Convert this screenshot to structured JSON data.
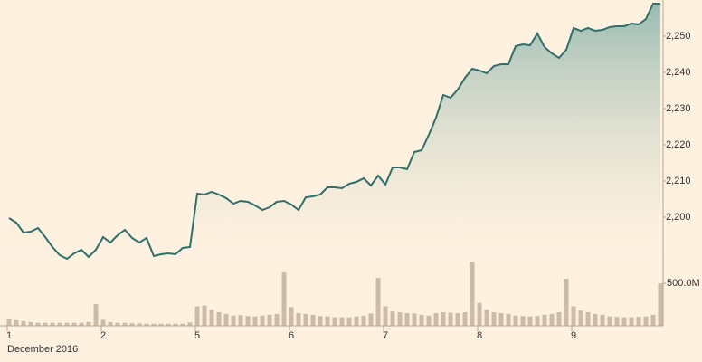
{
  "chart_data": {
    "type": "line",
    "x_label": "December 2016",
    "categories": [
      "1",
      null,
      null,
      null,
      null,
      null,
      null,
      null,
      null,
      null,
      null,
      null,
      null,
      "2",
      null,
      null,
      null,
      null,
      null,
      null,
      null,
      null,
      null,
      null,
      null,
      null,
      "5",
      null,
      null,
      null,
      null,
      null,
      null,
      null,
      null,
      null,
      null,
      null,
      null,
      "6",
      null,
      null,
      null,
      null,
      null,
      null,
      null,
      null,
      null,
      null,
      null,
      null,
      "7",
      null,
      null,
      null,
      null,
      null,
      null,
      null,
      null,
      null,
      null,
      null,
      null,
      "8",
      null,
      null,
      null,
      null,
      null,
      null,
      null,
      null,
      null,
      null,
      null,
      null,
      "9",
      null,
      null,
      null,
      null,
      null,
      null,
      null,
      null,
      null,
      null,
      null,
      null
    ],
    "series": [
      {
        "name": "Price",
        "color": "#2e6e6b",
        "axis": "y",
        "values": [
          2199.75,
          2198.5,
          2195.75,
          2196,
          2197,
          2194.5,
          2191.75,
          2189.5,
          2188.5,
          2190,
          2191,
          2189,
          2191,
          2194.5,
          2193,
          2195,
          2196.5,
          2194.25,
          2193,
          2194.25,
          2189.25,
          2189.75,
          2190,
          2189.75,
          2191.5,
          2191.75,
          2206.5,
          2206.25,
          2207,
          2206.25,
          2205.25,
          2203.75,
          2204.5,
          2204.25,
          2203.25,
          2202,
          2202.75,
          2204.25,
          2204.5,
          2203.5,
          2202,
          2205.5,
          2205.75,
          2206.25,
          2208.25,
          2208.25,
          2208,
          2209.25,
          2209.75,
          2210.75,
          2208.75,
          2211.5,
          2209,
          2213.75,
          2213.75,
          2213.25,
          2218,
          2218.5,
          2222.75,
          2227.5,
          2233.75,
          2233,
          2235.25,
          2238.5,
          2241,
          2240.5,
          2239.75,
          2241.75,
          2242.25,
          2242.25,
          2247.25,
          2247.75,
          2247.5,
          2250.75,
          2247,
          2245.25,
          2244,
          2246.25,
          2252.25,
          2251.5,
          2252.25,
          2251.5,
          2251.75,
          2252.5,
          2252.75,
          2252.75,
          2253.5,
          2253.25,
          2254.75,
          2259,
          2259
        ]
      },
      {
        "name": "Volume",
        "color": "#cbbba8",
        "axis": "y2",
        "values": [
          85000000,
          65000000,
          55000000,
          45000000,
          35000000,
          35000000,
          35000000,
          35000000,
          35000000,
          35000000,
          35000000,
          45000000,
          255000000,
          70000000,
          45000000,
          35000000,
          35000000,
          30000000,
          30000000,
          25000000,
          25000000,
          25000000,
          25000000,
          25000000,
          25000000,
          40000000,
          230000000,
          240000000,
          190000000,
          160000000,
          140000000,
          120000000,
          125000000,
          115000000,
          110000000,
          120000000,
          130000000,
          140000000,
          630000000,
          220000000,
          150000000,
          140000000,
          130000000,
          115000000,
          110000000,
          100000000,
          100000000,
          100000000,
          110000000,
          120000000,
          145000000,
          565000000,
          230000000,
          170000000,
          160000000,
          150000000,
          145000000,
          130000000,
          120000000,
          150000000,
          160000000,
          155000000,
          150000000,
          160000000,
          755000000,
          270000000,
          190000000,
          160000000,
          150000000,
          140000000,
          120000000,
          115000000,
          110000000,
          115000000,
          130000000,
          140000000,
          160000000,
          555000000,
          230000000,
          180000000,
          160000000,
          140000000,
          130000000,
          110000000,
          105000000,
          100000000,
          100000000,
          105000000,
          110000000,
          130000000,
          500000000
        ]
      }
    ],
    "ylim": [
      2187.5,
      2260
    ],
    "yticks": [
      {
        "value": 2200,
        "label": "2,200"
      },
      {
        "value": 2210,
        "label": "2,210"
      },
      {
        "value": 2220,
        "label": "2,220"
      },
      {
        "value": 2230,
        "label": "2,230"
      },
      {
        "value": 2240,
        "label": "2,240"
      },
      {
        "value": 2250,
        "label": "2,250"
      }
    ],
    "y2lim": [
      0,
      800000000
    ],
    "y2ticks": [
      {
        "value": 500000000,
        "label": "500.0M"
      }
    ],
    "grid": false
  }
}
